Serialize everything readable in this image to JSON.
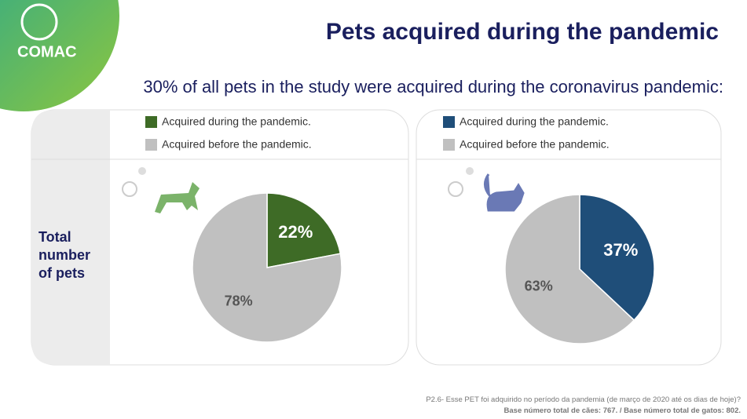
{
  "header": {
    "title": "Pets acquired during the pandemic",
    "subtitle": "30% of all pets in the study were acquired during the coronavirus pandemic:"
  },
  "logo": "COMAC",
  "row_label": "Total number of pets",
  "chart_data": [
    {
      "type": "pie",
      "categories": [
        "Acquired during the pandemic.",
        "Acquired before the pandemic."
      ],
      "values": [
        22,
        78
      ],
      "value_labels": [
        "22%",
        "78%"
      ],
      "colors": [
        "#3e6b26",
        "#c0c0c0"
      ]
    },
    {
      "type": "pie",
      "categories": [
        "Acquired during the pandemic.",
        "Acquired before the pandemic."
      ],
      "values": [
        37,
        63
      ],
      "value_labels": [
        "37%",
        "63%"
      ],
      "colors": [
        "#1f4e79",
        "#c0c0c0"
      ]
    }
  ],
  "footnote": [
    "P2.6- Esse PET foi adquirido no período da pandemia (de março de 2020 até os dias de hoje)?",
    "Base número total de cães: 767. / Base número total de gatos: 802."
  ]
}
